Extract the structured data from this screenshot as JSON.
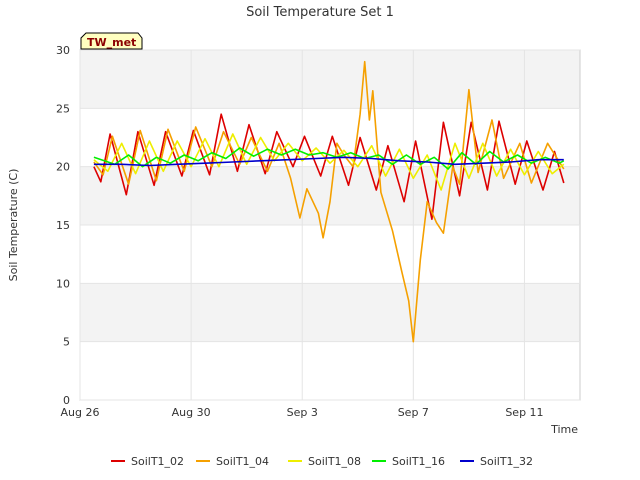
{
  "chart_data": {
    "type": "line",
    "title": "Soil Temperature Set 1",
    "xlabel": "Time",
    "ylabel": "Soil Temperature (C)",
    "ylim": [
      0,
      30
    ],
    "yticks": [
      "0",
      "5",
      "10",
      "15",
      "20",
      "25",
      "30"
    ],
    "xlim": [
      "2023-08-26",
      "2023-09-13"
    ],
    "xticks": [
      {
        "label": "Aug 26",
        "date": "2023-08-26"
      },
      {
        "label": "Aug 30",
        "date": "2023-08-30"
      },
      {
        "label": "Sep 3",
        "date": "2023-09-03"
      },
      {
        "label": "Sep 7",
        "date": "2023-09-07"
      },
      {
        "label": "Sep 11",
        "date": "2023-09-11"
      }
    ],
    "site_label": "TW_met",
    "background_bands": "alternating light gray every 5 degrees",
    "legend_position": "bottom",
    "series": [
      {
        "name": "SoilT1_02",
        "color": "#dd0000",
        "points": [
          [
            "2023-08-26 12:00",
            20.0
          ],
          [
            "2023-08-26 18:00",
            18.7
          ],
          [
            "2023-08-27 02:00",
            22.8
          ],
          [
            "2023-08-27 16:00",
            17.6
          ],
          [
            "2023-08-28 02:00",
            23.0
          ],
          [
            "2023-08-28 16:00",
            18.4
          ],
          [
            "2023-08-29 02:00",
            23.0
          ],
          [
            "2023-08-29 16:00",
            19.2
          ],
          [
            "2023-08-30 02:00",
            23.1
          ],
          [
            "2023-08-30 16:00",
            19.3
          ],
          [
            "2023-08-31 02:00",
            24.5
          ],
          [
            "2023-08-31 16:00",
            19.6
          ],
          [
            "2023-09-01 02:00",
            23.6
          ],
          [
            "2023-09-01 16:00",
            19.4
          ],
          [
            "2023-09-02 02:00",
            23.0
          ],
          [
            "2023-09-02 16:00",
            20.0
          ],
          [
            "2023-09-03 02:00",
            22.6
          ],
          [
            "2023-09-03 16:00",
            19.2
          ],
          [
            "2023-09-04 02:00",
            22.6
          ],
          [
            "2023-09-04 16:00",
            18.4
          ],
          [
            "2023-09-05 02:00",
            22.5
          ],
          [
            "2023-09-05 16:00",
            18.0
          ],
          [
            "2023-09-06 02:00",
            21.8
          ],
          [
            "2023-09-06 16:00",
            17.0
          ],
          [
            "2023-09-07 02:00",
            22.2
          ],
          [
            "2023-09-07 16:00",
            15.5
          ],
          [
            "2023-09-08 02:00",
            23.8
          ],
          [
            "2023-09-08 16:00",
            17.5
          ],
          [
            "2023-09-09 02:00",
            23.8
          ],
          [
            "2023-09-09 16:00",
            18.0
          ],
          [
            "2023-09-10 02:00",
            23.9
          ],
          [
            "2023-09-10 16:00",
            18.5
          ],
          [
            "2023-09-11 02:00",
            22.2
          ],
          [
            "2023-09-11 16:00",
            18.0
          ],
          [
            "2023-09-12 02:00",
            21.3
          ],
          [
            "2023-09-12 10:00",
            18.6
          ]
        ]
      },
      {
        "name": "SoilT1_04",
        "color": "#f5a000",
        "points": [
          [
            "2023-08-26 12:00",
            20.4
          ],
          [
            "2023-08-26 20:00",
            19.3
          ],
          [
            "2023-08-27 04:00",
            22.6
          ],
          [
            "2023-08-27 18:00",
            18.5
          ],
          [
            "2023-08-28 04:00",
            23.1
          ],
          [
            "2023-08-28 18:00",
            18.8
          ],
          [
            "2023-08-29 04:00",
            23.2
          ],
          [
            "2023-08-29 18:00",
            19.6
          ],
          [
            "2023-08-30 04:00",
            23.4
          ],
          [
            "2023-08-30 18:00",
            20.0
          ],
          [
            "2023-08-31 04:00",
            23.0
          ],
          [
            "2023-08-31 18:00",
            20.2
          ],
          [
            "2023-09-01 04:00",
            22.5
          ],
          [
            "2023-09-01 18:00",
            19.6
          ],
          [
            "2023-09-02 04:00",
            22.0
          ],
          [
            "2023-09-02 14:00",
            19.0
          ],
          [
            "2023-09-02 22:00",
            15.6
          ],
          [
            "2023-09-03 04:00",
            18.1
          ],
          [
            "2023-09-03 14:00",
            16.0
          ],
          [
            "2023-09-03 18:00",
            13.9
          ],
          [
            "2023-09-04 00:00",
            17.0
          ],
          [
            "2023-09-04 06:00",
            22.0
          ],
          [
            "2023-09-04 12:00",
            21.0
          ],
          [
            "2023-09-04 20:00",
            20.0
          ],
          [
            "2023-09-05 02:00",
            24.5
          ],
          [
            "2023-09-05 06:00",
            29.0
          ],
          [
            "2023-09-05 10:00",
            24.0
          ],
          [
            "2023-09-05 13:00",
            26.5
          ],
          [
            "2023-09-05 20:00",
            17.8
          ],
          [
            "2023-09-06 06:00",
            14.5
          ],
          [
            "2023-09-06 14:00",
            11.0
          ],
          [
            "2023-09-06 20:00",
            8.5
          ],
          [
            "2023-09-07 00:00",
            5.0
          ],
          [
            "2023-09-07 06:00",
            12.0
          ],
          [
            "2023-09-07 12:00",
            17.0
          ],
          [
            "2023-09-07 20:00",
            15.2
          ],
          [
            "2023-09-08 02:00",
            14.3
          ],
          [
            "2023-09-08 10:00",
            20.0
          ],
          [
            "2023-09-08 16:00",
            18.5
          ],
          [
            "2023-09-09 00:00",
            26.6
          ],
          [
            "2023-09-09 08:00",
            19.5
          ],
          [
            "2023-09-09 20:00",
            24.0
          ],
          [
            "2023-09-10 06:00",
            19.0
          ],
          [
            "2023-09-10 20:00",
            22.0
          ],
          [
            "2023-09-11 06:00",
            18.6
          ],
          [
            "2023-09-11 20:00",
            22.0
          ],
          [
            "2023-09-12 10:00",
            19.8
          ]
        ]
      },
      {
        "name": "SoilT1_08",
        "color": "#eeee00",
        "points": [
          [
            "2023-08-26 12:00",
            20.6
          ],
          [
            "2023-08-27 00:00",
            19.6
          ],
          [
            "2023-08-27 12:00",
            22.0
          ],
          [
            "2023-08-28 00:00",
            19.4
          ],
          [
            "2023-08-28 12:00",
            22.2
          ],
          [
            "2023-08-29 00:00",
            19.6
          ],
          [
            "2023-08-29 12:00",
            22.2
          ],
          [
            "2023-08-30 00:00",
            20.0
          ],
          [
            "2023-08-30 12:00",
            22.4
          ],
          [
            "2023-08-31 00:00",
            20.0
          ],
          [
            "2023-08-31 12:00",
            22.8
          ],
          [
            "2023-09-01 00:00",
            20.2
          ],
          [
            "2023-09-01 12:00",
            22.5
          ],
          [
            "2023-09-02 00:00",
            20.5
          ],
          [
            "2023-09-02 12:00",
            22.0
          ],
          [
            "2023-09-03 00:00",
            20.5
          ],
          [
            "2023-09-03 12:00",
            21.6
          ],
          [
            "2023-09-04 00:00",
            20.3
          ],
          [
            "2023-09-04 12:00",
            21.4
          ],
          [
            "2023-09-05 00:00",
            20.0
          ],
          [
            "2023-09-05 12:00",
            21.8
          ],
          [
            "2023-09-06 00:00",
            19.2
          ],
          [
            "2023-09-06 12:00",
            21.5
          ],
          [
            "2023-09-07 00:00",
            19.0
          ],
          [
            "2023-09-07 12:00",
            21.0
          ],
          [
            "2023-09-08 00:00",
            18.0
          ],
          [
            "2023-09-08 12:00",
            22.0
          ],
          [
            "2023-09-09 00:00",
            19.0
          ],
          [
            "2023-09-09 12:00",
            22.0
          ],
          [
            "2023-09-10 00:00",
            19.2
          ],
          [
            "2023-09-10 12:00",
            21.5
          ],
          [
            "2023-09-11 00:00",
            19.3
          ],
          [
            "2023-09-11 12:00",
            21.3
          ],
          [
            "2023-09-12 00:00",
            19.4
          ],
          [
            "2023-09-12 10:00",
            20.2
          ]
        ]
      },
      {
        "name": "SoilT1_16",
        "color": "#00ee00",
        "points": [
          [
            "2023-08-26 12:00",
            20.8
          ],
          [
            "2023-08-27 06:00",
            20.2
          ],
          [
            "2023-08-27 18:00",
            21.0
          ],
          [
            "2023-08-28 06:00",
            20.0
          ],
          [
            "2023-08-28 18:00",
            20.8
          ],
          [
            "2023-08-29 06:00",
            20.3
          ],
          [
            "2023-08-29 18:00",
            21.0
          ],
          [
            "2023-08-30 06:00",
            20.5
          ],
          [
            "2023-08-30 18:00",
            21.2
          ],
          [
            "2023-08-31 06:00",
            20.7
          ],
          [
            "2023-08-31 18:00",
            21.6
          ],
          [
            "2023-09-01 06:00",
            20.9
          ],
          [
            "2023-09-01 18:00",
            21.5
          ],
          [
            "2023-09-02 06:00",
            21.0
          ],
          [
            "2023-09-02 18:00",
            21.5
          ],
          [
            "2023-09-03 06:00",
            21.0
          ],
          [
            "2023-09-03 18:00",
            21.2
          ],
          [
            "2023-09-04 06:00",
            20.8
          ],
          [
            "2023-09-04 18:00",
            21.2
          ],
          [
            "2023-09-05 06:00",
            20.7
          ],
          [
            "2023-09-05 18:00",
            21.0
          ],
          [
            "2023-09-06 06:00",
            20.2
          ],
          [
            "2023-09-06 18:00",
            21.0
          ],
          [
            "2023-09-07 06:00",
            20.2
          ],
          [
            "2023-09-07 18:00",
            20.8
          ],
          [
            "2023-09-08 06:00",
            19.8
          ],
          [
            "2023-09-08 18:00",
            21.2
          ],
          [
            "2023-09-09 06:00",
            20.2
          ],
          [
            "2023-09-09 18:00",
            21.3
          ],
          [
            "2023-09-10 06:00",
            20.4
          ],
          [
            "2023-09-10 18:00",
            21.0
          ],
          [
            "2023-09-11 06:00",
            20.3
          ],
          [
            "2023-09-11 18:00",
            20.8
          ],
          [
            "2023-09-12 06:00",
            20.3
          ],
          [
            "2023-09-12 10:00",
            20.5
          ]
        ]
      },
      {
        "name": "SoilT1_32",
        "color": "#0000cc",
        "points": [
          [
            "2023-08-26 12:00",
            20.2
          ],
          [
            "2023-08-27 12:00",
            20.2
          ],
          [
            "2023-08-28 12:00",
            20.1
          ],
          [
            "2023-08-29 12:00",
            20.2
          ],
          [
            "2023-08-30 12:00",
            20.3
          ],
          [
            "2023-08-31 12:00",
            20.4
          ],
          [
            "2023-09-01 12:00",
            20.5
          ],
          [
            "2023-09-02 12:00",
            20.6
          ],
          [
            "2023-09-03 12:00",
            20.7
          ],
          [
            "2023-09-04 12:00",
            20.8
          ],
          [
            "2023-09-05 12:00",
            20.7
          ],
          [
            "2023-09-06 12:00",
            20.5
          ],
          [
            "2023-09-07 12:00",
            20.4
          ],
          [
            "2023-09-08 12:00",
            20.2
          ],
          [
            "2023-09-09 12:00",
            20.3
          ],
          [
            "2023-09-10 12:00",
            20.4
          ],
          [
            "2023-09-11 12:00",
            20.6
          ],
          [
            "2023-09-12 10:00",
            20.6
          ]
        ]
      }
    ]
  }
}
